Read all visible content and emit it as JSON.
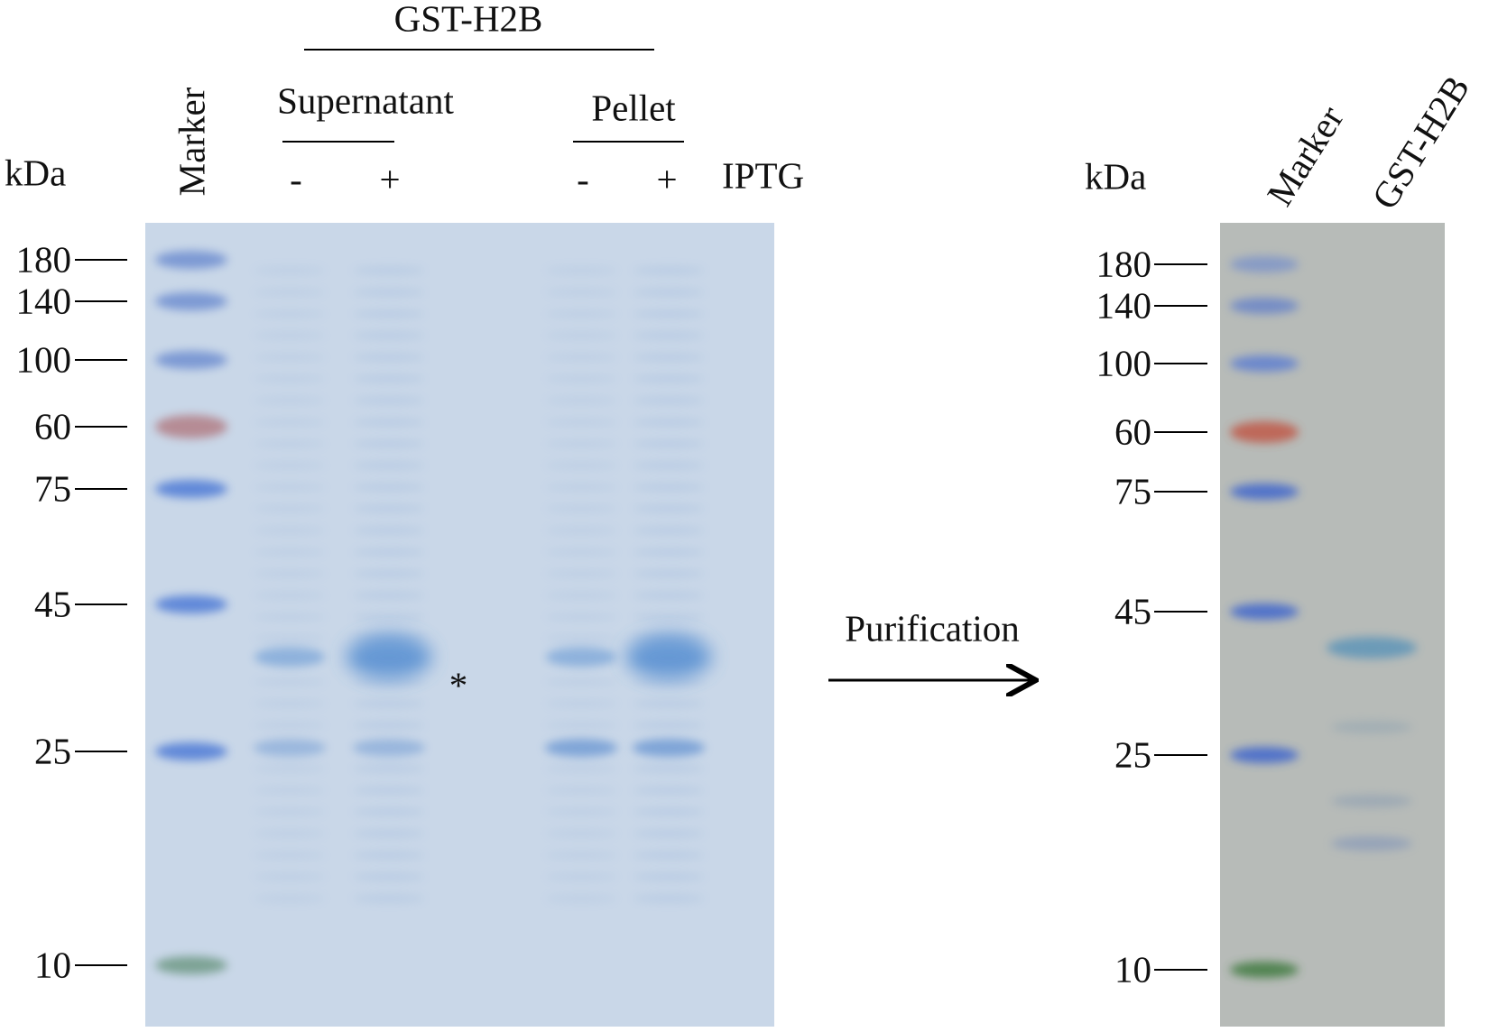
{
  "left_gel": {
    "title": "GST-H2B",
    "groups": [
      "Supernatant",
      "Pellet"
    ],
    "iptg_signs": [
      "-",
      "+",
      "-",
      "+"
    ],
    "iptg_label": "IPTG",
    "kda_label": "kDa",
    "marker_label": "Marker",
    "ladder": [
      "180",
      "140",
      "100",
      "60",
      "75",
      "45",
      "25",
      "10"
    ],
    "asterisk": "*"
  },
  "arrow_label": "Purification",
  "right_gel": {
    "kda_label": "kDa",
    "lanes": [
      "Marker",
      "GST-H2B"
    ],
    "ladder": [
      "180",
      "140",
      "100",
      "60",
      "75",
      "45",
      "25",
      "10"
    ]
  }
}
